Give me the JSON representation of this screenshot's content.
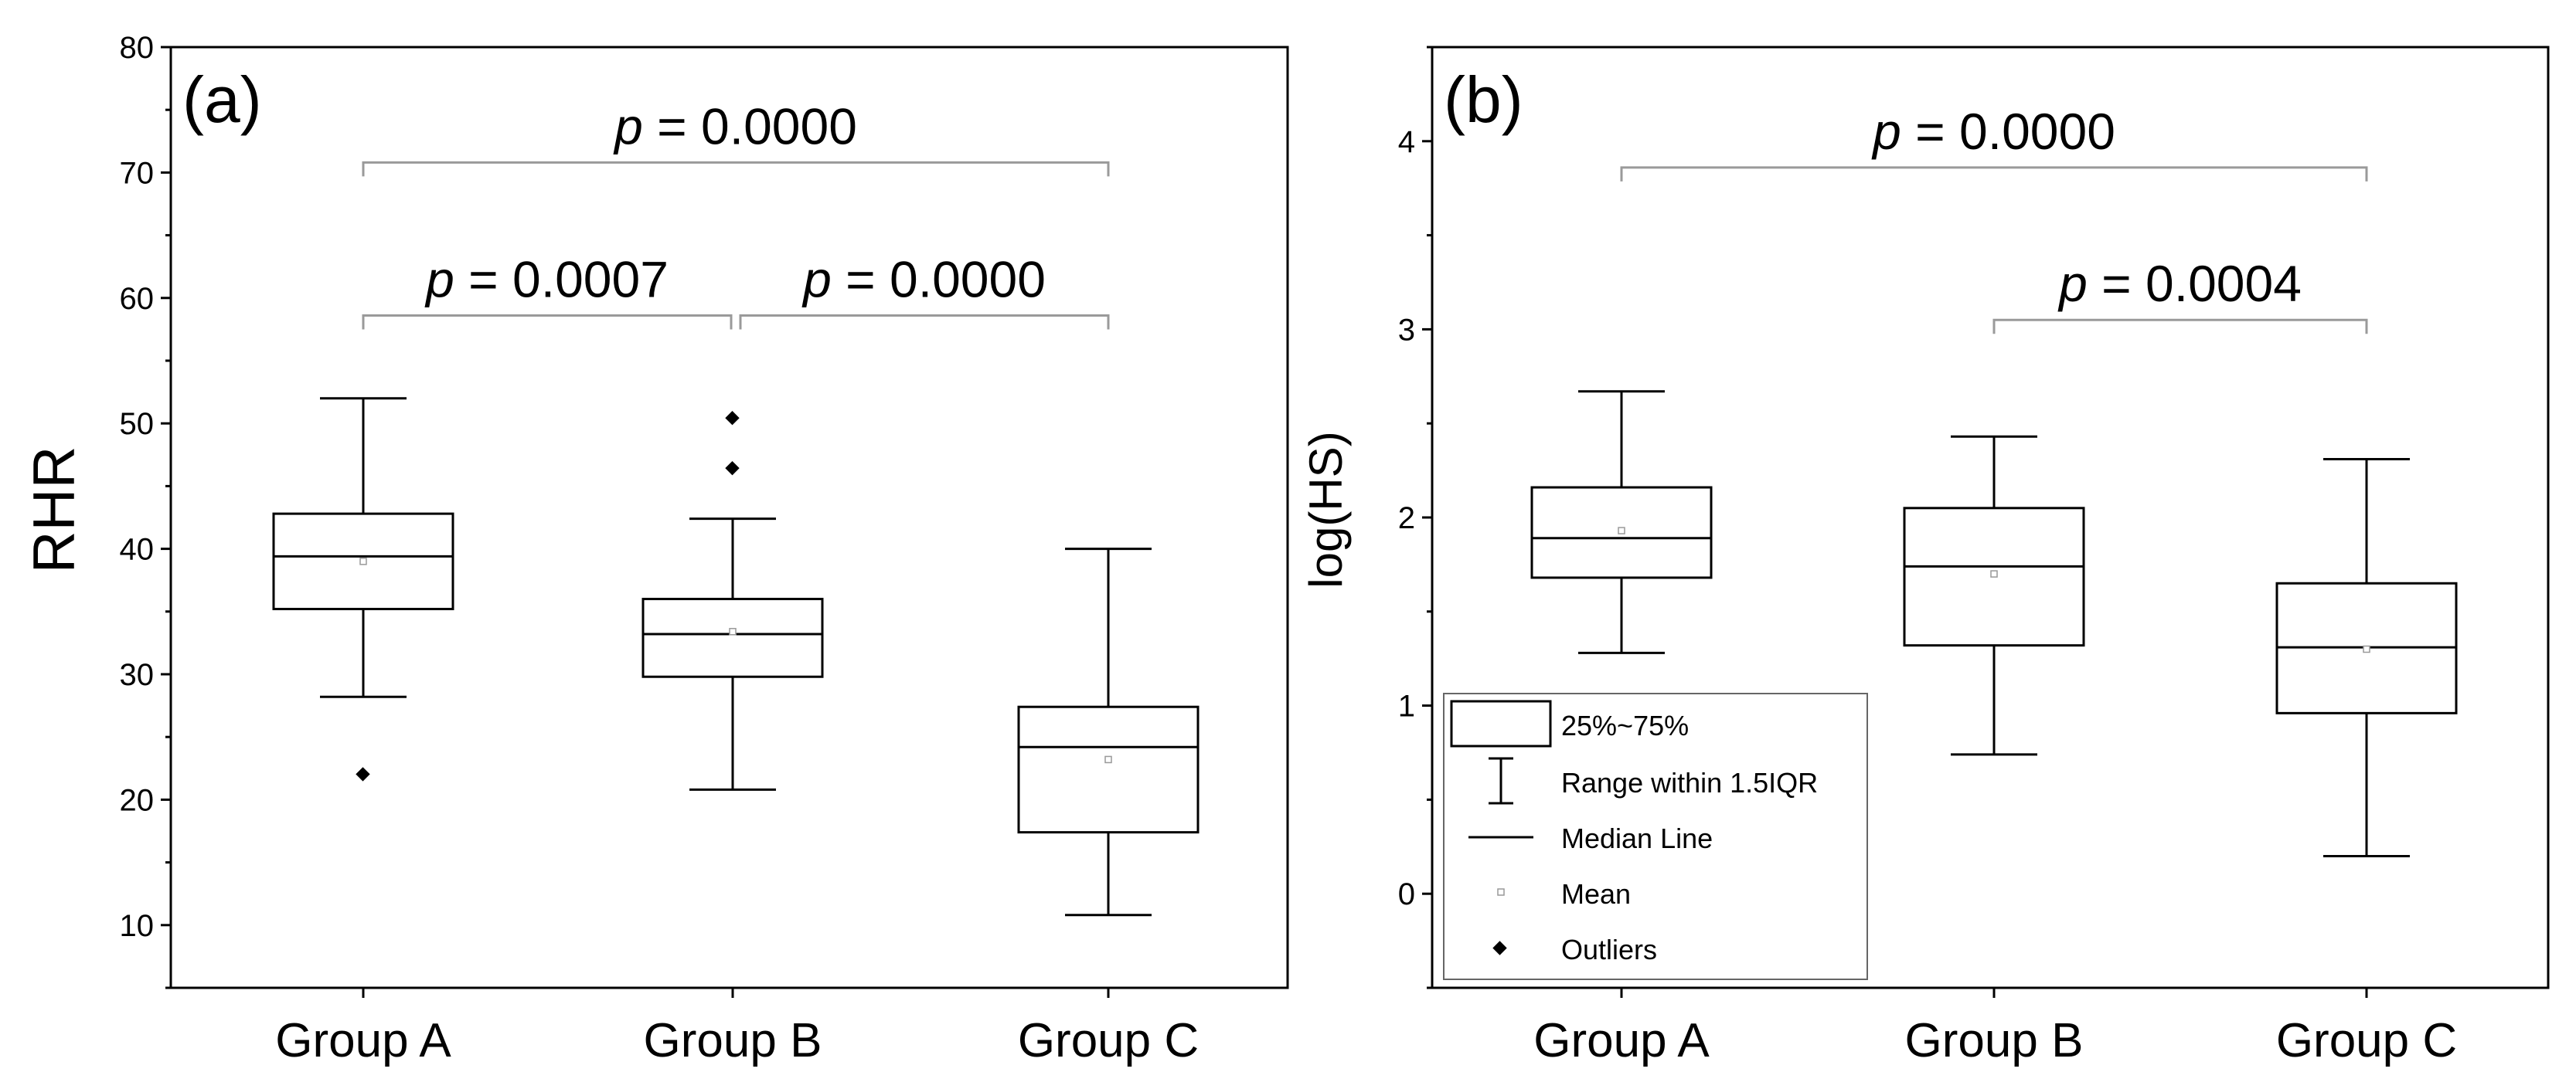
{
  "chart_data": [
    {
      "type": "box",
      "panel_label": "(a)",
      "ylabel": "RHR",
      "ylim": [
        5,
        80
      ],
      "yticks": [
        10,
        20,
        30,
        40,
        50,
        60,
        70,
        80
      ],
      "categories": [
        "Group A",
        "Group B",
        "Group C"
      ],
      "boxes": [
        {
          "q1": 35.2,
          "median": 39.4,
          "q3": 42.8,
          "whisker_low": 28.2,
          "whisker_high": 52.0,
          "mean": 39.0,
          "outliers": [
            22.0
          ]
        },
        {
          "q1": 29.8,
          "median": 33.2,
          "q3": 36.0,
          "whisker_low": 20.8,
          "whisker_high": 42.4,
          "mean": 33.4,
          "outliers": [
            46.4,
            50.4
          ]
        },
        {
          "q1": 17.4,
          "median": 24.2,
          "q3": 27.4,
          "whisker_low": 10.8,
          "whisker_high": 40.0,
          "mean": 23.2,
          "outliers": []
        }
      ],
      "comparisons": [
        {
          "from": 0,
          "to": 2,
          "y": 70.8,
          "label_p": "p",
          "label_rest": " = 0.0000"
        },
        {
          "from": 0,
          "to": 1,
          "y": 58.6,
          "label_p": "p",
          "label_rest": " = 0.0007"
        },
        {
          "from": 1,
          "to": 2,
          "y": 58.6,
          "label_p": "p",
          "label_rest": " = 0.0000"
        }
      ]
    },
    {
      "type": "box",
      "panel_label": "(b)",
      "ylabel": "log(HS)",
      "ylim": [
        -0.5,
        4.5
      ],
      "yticks": [
        0,
        1,
        2,
        3,
        4
      ],
      "categories": [
        "Group A",
        "Group B",
        "Group C"
      ],
      "boxes": [
        {
          "q1": 1.68,
          "median": 1.89,
          "q3": 2.16,
          "whisker_low": 1.28,
          "whisker_high": 2.67,
          "mean": 1.93,
          "outliers": []
        },
        {
          "q1": 1.32,
          "median": 1.74,
          "q3": 2.05,
          "whisker_low": 0.74,
          "whisker_high": 2.43,
          "mean": 1.7,
          "outliers": []
        },
        {
          "q1": 0.96,
          "median": 1.31,
          "q3": 1.65,
          "whisker_low": 0.2,
          "whisker_high": 2.31,
          "mean": 1.3,
          "outliers": []
        }
      ],
      "comparisons": [
        {
          "from": 0,
          "to": 2,
          "y": 3.86,
          "label_p": "p",
          "label_rest": " = 0.0000"
        },
        {
          "from": 1,
          "to": 2,
          "y": 3.05,
          "label_p": "p",
          "label_rest": " = 0.0004"
        }
      ],
      "legend": {
        "placement": "bottom-left",
        "items": [
          "25%~75%",
          "Range within 1.5IQR",
          "Median Line",
          "Mean",
          "Outliers"
        ]
      }
    }
  ]
}
